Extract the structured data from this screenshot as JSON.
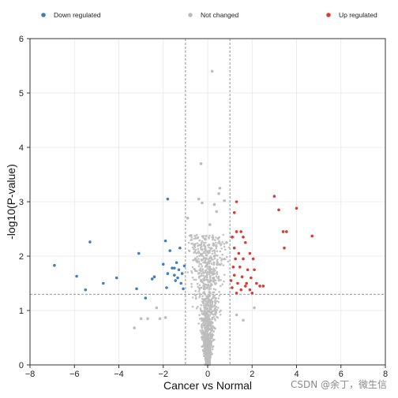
{
  "chart_data": {
    "type": "scatter",
    "xlabel": "Cancer vs Normal",
    "ylabel": "-log10(P-value)",
    "xlim": [
      -8,
      8
    ],
    "ylim": [
      0,
      6
    ],
    "xticks": [
      -8,
      -6,
      -4,
      -2,
      0,
      2,
      4,
      6,
      8
    ],
    "yticks": [
      0,
      1,
      2,
      3,
      4,
      5,
      6
    ],
    "grid": true,
    "legend_position": "top",
    "thresholds": {
      "x": [
        -1,
        1
      ],
      "y": 1.3
    },
    "series": [
      {
        "name": "Down regulated",
        "color": "#3e7fc1",
        "points": [
          [
            -6.9,
            1.83
          ],
          [
            -5.9,
            1.63
          ],
          [
            -5.5,
            1.38
          ],
          [
            -5.3,
            2.26
          ],
          [
            -4.7,
            1.5
          ],
          [
            -4.1,
            1.6
          ],
          [
            -3.2,
            1.4
          ],
          [
            -3.1,
            2.05
          ],
          [
            -2.8,
            1.23
          ],
          [
            -2.5,
            1.58
          ],
          [
            -2.4,
            1.62
          ],
          [
            -2.0,
            1.85
          ],
          [
            -1.9,
            2.28
          ],
          [
            -1.8,
            1.68
          ],
          [
            -1.85,
            1.42
          ],
          [
            -1.8,
            3.05
          ],
          [
            -1.7,
            2.1
          ],
          [
            -1.6,
            1.78
          ],
          [
            -1.5,
            1.78
          ],
          [
            -1.5,
            1.65
          ],
          [
            -1.45,
            1.55
          ],
          [
            -1.4,
            1.88
          ],
          [
            -1.35,
            1.6
          ],
          [
            -1.3,
            1.75
          ],
          [
            -1.25,
            2.15
          ],
          [
            -1.2,
            1.5
          ],
          [
            -1.15,
            1.68
          ],
          [
            -1.1,
            1.4
          ],
          [
            -1.05,
            1.82
          ]
        ]
      },
      {
        "name": "Not changed",
        "color": "#bdbdbd",
        "points": [
          [
            0.2,
            5.4
          ],
          [
            -0.3,
            3.7
          ],
          [
            -0.9,
            2.7
          ],
          [
            -0.4,
            3.05
          ],
          [
            -0.25,
            2.98
          ],
          [
            0.3,
            2.95
          ],
          [
            0.4,
            2.82
          ],
          [
            0.5,
            3.15
          ],
          [
            0.55,
            3.25
          ],
          [
            0.75,
            3.02
          ],
          [
            0.1,
            2.58
          ],
          [
            -0.6,
            2.2
          ],
          [
            -3.3,
            0.68
          ],
          [
            -2.3,
            1.05
          ],
          [
            -2.15,
            0.85
          ],
          [
            -1.9,
            0.87
          ],
          [
            -3.0,
            0.85
          ],
          [
            -2.7,
            0.85
          ],
          [
            1.3,
            0.92
          ],
          [
            1.6,
            0.82
          ],
          [
            2.1,
            1.05
          ],
          [
            -0.75,
            2.38
          ],
          [
            0.85,
            2.25
          ],
          [
            0.3,
            2.0
          ],
          [
            -0.55,
            1.95
          ],
          [
            1.15,
            2.35
          ]
        ]
      },
      {
        "name": "Up regulated",
        "color": "#d93b35",
        "points": [
          [
            1.3,
            3.0
          ],
          [
            1.2,
            2.8
          ],
          [
            1.3,
            2.45
          ],
          [
            1.5,
            2.45
          ],
          [
            1.1,
            2.35
          ],
          [
            1.6,
            2.35
          ],
          [
            1.7,
            2.25
          ],
          [
            1.2,
            2.15
          ],
          [
            1.4,
            2.05
          ],
          [
            1.9,
            2.05
          ],
          [
            1.25,
            1.95
          ],
          [
            1.6,
            1.95
          ],
          [
            2.05,
            1.95
          ],
          [
            1.15,
            1.8
          ],
          [
            1.45,
            1.8
          ],
          [
            1.8,
            1.75
          ],
          [
            2.1,
            1.75
          ],
          [
            1.2,
            1.65
          ],
          [
            1.55,
            1.62
          ],
          [
            1.95,
            1.6
          ],
          [
            1.05,
            1.55
          ],
          [
            1.35,
            1.5
          ],
          [
            1.75,
            1.5
          ],
          [
            2.2,
            1.5
          ],
          [
            1.1,
            1.42
          ],
          [
            1.5,
            1.38
          ],
          [
            1.9,
            1.38
          ],
          [
            2.35,
            1.45
          ],
          [
            1.3,
            1.32
          ],
          [
            2.0,
            1.32
          ],
          [
            1.7,
            1.45
          ],
          [
            2.5,
            1.45
          ],
          [
            3.0,
            3.1
          ],
          [
            3.2,
            2.85
          ],
          [
            3.4,
            2.45
          ],
          [
            3.55,
            2.45
          ],
          [
            3.45,
            2.15
          ],
          [
            4.0,
            2.88
          ],
          [
            4.7,
            2.37
          ]
        ]
      }
    ]
  },
  "watermark": "CSDN @余丁，微生信"
}
